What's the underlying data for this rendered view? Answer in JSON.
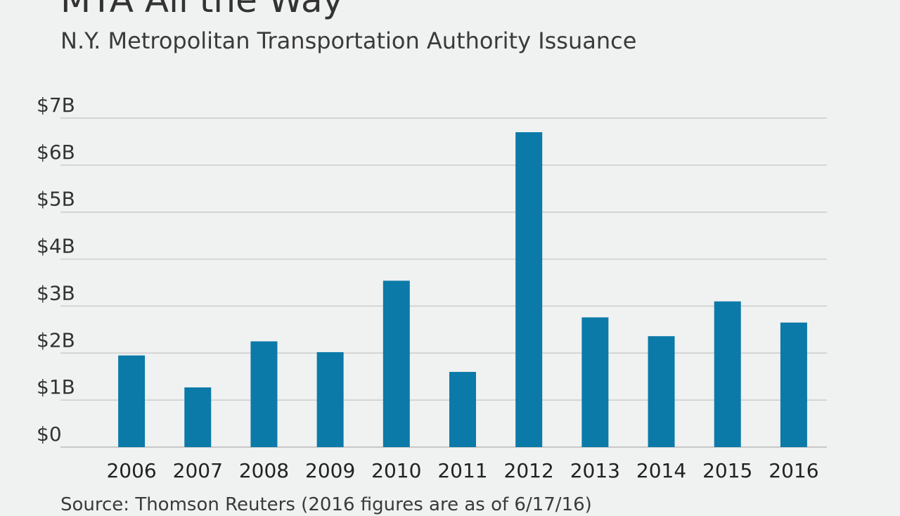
{
  "colors": {
    "bar": "#0b7aa8",
    "background": "#f0f1f1"
  },
  "chart_data": {
    "type": "bar",
    "title": "MTA All the Way",
    "subtitle": "N.Y. Metropolitan Transportation Authority Issuance",
    "source": "Source: Thomson Reuters (2016 figures are as of 6/17/16)",
    "categories": [
      "2006",
      "2007",
      "2008",
      "2009",
      "2010",
      "2011",
      "2012",
      "2013",
      "2014",
      "2015",
      "2016"
    ],
    "values": [
      1.95,
      1.27,
      2.25,
      2.02,
      3.54,
      1.6,
      6.7,
      2.76,
      2.36,
      3.1,
      2.65
    ],
    "unit": "billions USD",
    "ylim": [
      0,
      7
    ],
    "yticks": [
      {
        "value": 0,
        "label": "$0"
      },
      {
        "value": 1,
        "label": "$1B"
      },
      {
        "value": 2,
        "label": "$2B"
      },
      {
        "value": 3,
        "label": "$3B"
      },
      {
        "value": 4,
        "label": "$4B"
      },
      {
        "value": 5,
        "label": "$5B"
      },
      {
        "value": 6,
        "label": "$6B"
      },
      {
        "value": 7,
        "label": "$7B"
      }
    ],
    "grid": true,
    "xlabel": "",
    "ylabel": ""
  }
}
